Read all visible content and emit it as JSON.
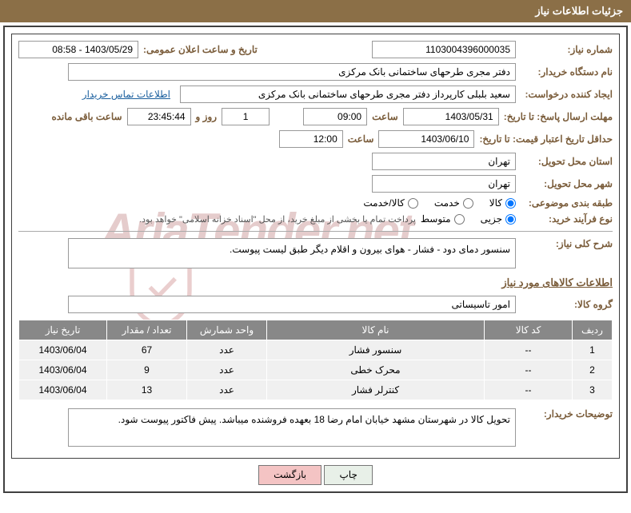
{
  "header": {
    "title": "جزئیات اطلاعات نیاز"
  },
  "info": {
    "req_no_label": "شماره نیاز:",
    "req_no": "1103004396000035",
    "announce_label": "تاریخ و ساعت اعلان عمومی:",
    "announce_value": "1403/05/29 - 08:58",
    "buyer_org_label": "نام دستگاه خریدار:",
    "buyer_org": "دفتر مجری طرحهای ساختمانی بانک مرکزی",
    "creator_label": "ایجاد کننده درخواست:",
    "creator": "سعید بلبلی کارپرداز دفتر مجری طرحهای ساختمانی بانک مرکزی",
    "contact_link": "اطلاعات تماس خریدار",
    "deadline_label": "مهلت ارسال پاسخ: تا تاریخ:",
    "deadline_date": "1403/05/31",
    "time_label": "ساعت",
    "deadline_time": "09:00",
    "days_label": "روز و",
    "days": "1",
    "remaining_time": "23:45:44",
    "remaining_label": "ساعت باقی مانده",
    "validity_label": "حداقل تاریخ اعتبار قیمت: تا تاریخ:",
    "validity_date": "1403/06/10",
    "validity_time": "12:00",
    "province_label": "استان محل تحویل:",
    "province": "تهران",
    "city_label": "شهر محل تحویل:",
    "city": "تهران",
    "category_label": "طبقه بندی موضوعی:",
    "cat_goods": "کالا",
    "cat_service": "خدمت",
    "cat_both": "کالا/خدمت",
    "purchase_type_label": "نوع فرآیند خرید:",
    "pt_small": "جزیی",
    "pt_medium": "متوسط",
    "purchase_note": "پرداخت تمام یا بخشی از مبلغ خرید، از محل \"اسناد خزانه اسلامی\" خواهد بود."
  },
  "need": {
    "desc_label": "شرح کلی نیاز:",
    "desc": "سنسور دمای دود - فشار - هوای بیرون و اقلام دیگر طبق لیست پیوست.",
    "goods_title": "اطلاعات کالاهای مورد نیاز",
    "group_label": "گروه کالا:",
    "group": "امور تاسیساتی"
  },
  "table": {
    "headers": [
      "ردیف",
      "کد کالا",
      "نام کالا",
      "واحد شمارش",
      "تعداد / مقدار",
      "تاریخ نیاز"
    ],
    "rows": [
      [
        "1",
        "--",
        "سنسور فشار",
        "عدد",
        "67",
        "1403/06/04"
      ],
      [
        "2",
        "--",
        "محرک خطی",
        "عدد",
        "9",
        "1403/06/04"
      ],
      [
        "3",
        "--",
        "کنترلر فشار",
        "عدد",
        "13",
        "1403/06/04"
      ]
    ]
  },
  "notes": {
    "buyer_notes_label": "توضیحات خریدار:",
    "buyer_notes": "تحویل کالا در شهرستان مشهد خیابان امام رضا 18 بعهده فروشنده میباشد. پیش فاکتور پیوست شود."
  },
  "buttons": {
    "print": "چاپ",
    "back": "بازگشت"
  },
  "watermark": "AriaTender.net"
}
